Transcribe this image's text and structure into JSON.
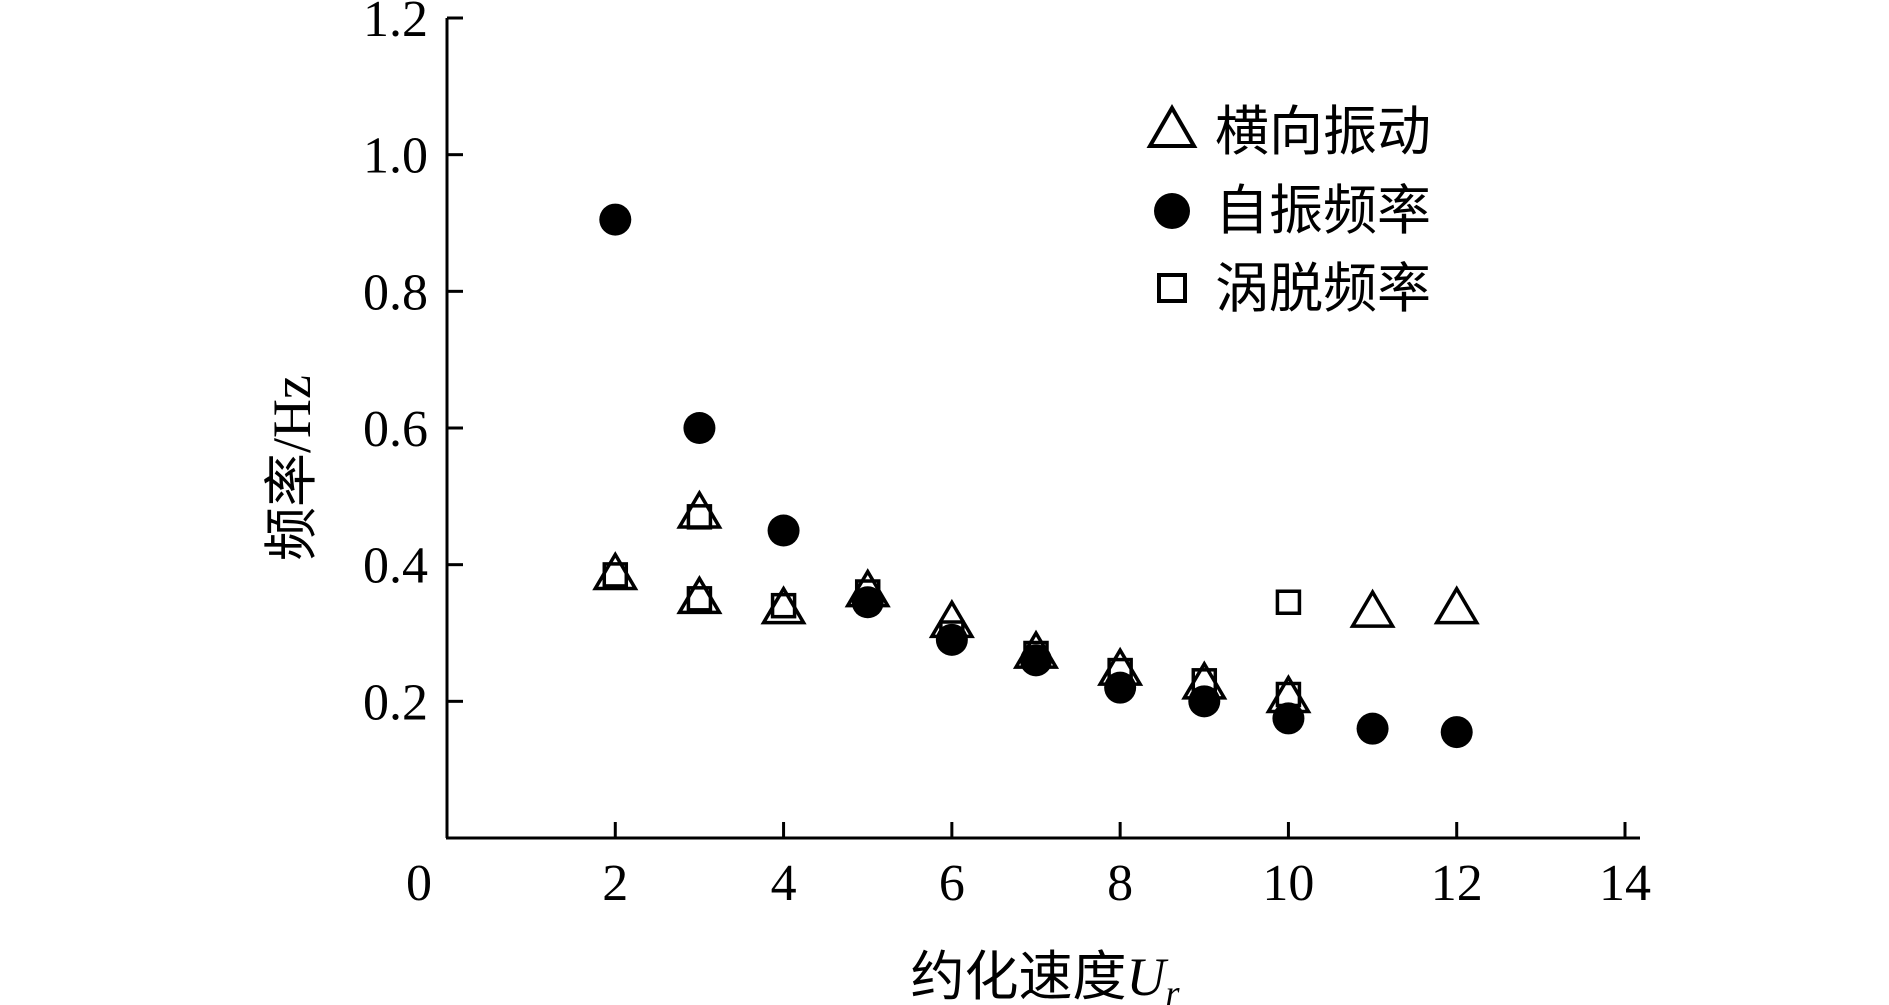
{
  "chart_data": {
    "type": "scatter",
    "xlabel_main": "约化速度",
    "xlabel_var": "U",
    "xlabel_sub": "r",
    "ylabel": "频率/Hz",
    "xlim": [
      0,
      14
    ],
    "ylim": [
      0,
      1.2
    ],
    "x_ticks": [
      0,
      2,
      4,
      6,
      8,
      10,
      12,
      14
    ],
    "x_tick_labels": [
      "0",
      "2",
      "4",
      "6",
      "8",
      "10",
      "12",
      "14"
    ],
    "y_ticks": [
      0.2,
      0.4,
      0.6,
      0.8,
      1.0,
      1.2
    ],
    "y_tick_labels": [
      "0.2",
      "0.4",
      "0.6",
      "0.8",
      "1.0",
      "1.2"
    ],
    "grid": false,
    "legend_position": "top-right",
    "series": [
      {
        "name": "横向振动",
        "marker": "triangle-open",
        "x": [
          2,
          3,
          3,
          4,
          5,
          6,
          7,
          8,
          9,
          10,
          11,
          12
        ],
        "y": [
          0.385,
          0.475,
          0.35,
          0.335,
          0.36,
          0.315,
          0.27,
          0.245,
          0.225,
          0.205,
          0.33,
          0.335
        ]
      },
      {
        "name": "自振频率",
        "marker": "circle-filled",
        "x": [
          2,
          3,
          4,
          5,
          6,
          7,
          8,
          9,
          10,
          11,
          12
        ],
        "y": [
          0.905,
          0.6,
          0.45,
          0.345,
          0.29,
          0.26,
          0.22,
          0.2,
          0.175,
          0.16,
          0.155
        ]
      },
      {
        "name": "涡脱频率",
        "marker": "square-open",
        "x": [
          2,
          3,
          3,
          4,
          5,
          6,
          7,
          8,
          9,
          10,
          10
        ],
        "y": [
          0.385,
          0.47,
          0.35,
          0.34,
          0.36,
          0.3,
          0.27,
          0.245,
          0.23,
          0.21,
          0.345
        ]
      }
    ]
  }
}
